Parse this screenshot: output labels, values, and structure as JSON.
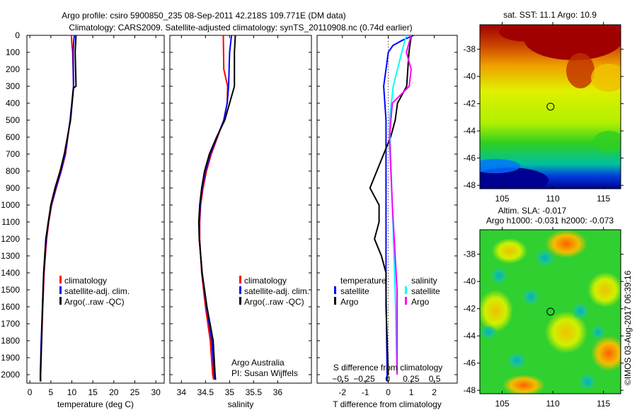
{
  "title_line1": "Argo profile: csiro 5900850_235 08-Sep-2011 42.218S 109.771E (DM data)",
  "title_line2": "Climatology: CARS2009. Satellite-adjusted climatology: synTS_20110908.nc (0.74d earlier)",
  "footer": "©IMOS 03-Aug-2017 06:39:16",
  "colors": {
    "climatology": "#ff0000",
    "satellite": "#0000ff",
    "argo": "#000000",
    "s_satellite": "#00ffff",
    "s_argo": "#ff00ff"
  },
  "chart_data": [
    {
      "type": "line",
      "id": "temperature",
      "xlabel": "temperature (deg C)",
      "ylabel": "",
      "xlim": [
        -0.7,
        32
      ],
      "ylim": [
        2050,
        0
      ],
      "xticks": [
        0,
        5,
        10,
        15,
        20,
        25,
        30
      ],
      "yticks": [
        0,
        100,
        200,
        300,
        400,
        500,
        600,
        700,
        800,
        900,
        1000,
        1100,
        1200,
        1300,
        1400,
        1500,
        1600,
        1700,
        1800,
        1900,
        2000
      ],
      "legend": [
        "climatology",
        "satellite-adj. clim.",
        "Argo(..raw -QC)"
      ],
      "series": [
        {
          "name": "climatology",
          "color": "#ff0000",
          "depth": [
            0,
            50,
            100,
            300,
            500,
            700,
            800,
            900,
            1000,
            1100,
            1200,
            1300,
            1400,
            1600,
            1800,
            2000,
            2040
          ],
          "values": [
            9.9,
            10,
            10.2,
            10.4,
            9.6,
            8.5,
            7.5,
            6.3,
            5.2,
            4.5,
            4,
            3.7,
            3.4,
            3.1,
            2.8,
            2.6,
            2.6
          ]
        },
        {
          "name": "satellite-adj. clim.",
          "color": "#0000ff",
          "depth": [
            0,
            50,
            100,
            300,
            500,
            700,
            800,
            900,
            1000,
            1100,
            1200,
            1300,
            1400,
            1600,
            1800,
            2000,
            2040
          ],
          "values": [
            10.6,
            10.4,
            10.3,
            10.4,
            9.6,
            8.4,
            7.4,
            6.2,
            5.1,
            4.4,
            3.9,
            3.6,
            3.3,
            3,
            2.7,
            2.5,
            2.5
          ]
        },
        {
          "name": "Argo(..raw -QC)",
          "color": "#000000",
          "depth": [
            0,
            100,
            300,
            310,
            500,
            700,
            800,
            900,
            1000,
            1200,
            1400,
            1600,
            1800,
            2000,
            2040
          ],
          "values": [
            11,
            10.8,
            11,
            10.4,
            9.7,
            8.2,
            7.2,
            6,
            5,
            3.8,
            3.3,
            3,
            2.8,
            2.5,
            2.5
          ]
        }
      ]
    },
    {
      "type": "line",
      "id": "salinity",
      "xlabel": "salinity",
      "xlim": [
        33.76,
        36.7
      ],
      "ylim": [
        2050,
        0
      ],
      "xticks": [
        34,
        34.5,
        35,
        35.5,
        36
      ],
      "legend": [
        "climatology",
        "satellite-adj. clim.",
        "Argo(..raw -QC)"
      ],
      "annotation": [
        "Argo Australia",
        "PI: Susan Wijffels"
      ],
      "series": [
        {
          "name": "climatology",
          "color": "#ff0000",
          "depth": [
            0,
            200,
            300,
            400,
            500,
            600,
            700,
            800,
            900,
            1000,
            1100,
            1200,
            1400,
            1600,
            1800,
            2000,
            2030
          ],
          "values": [
            34.87,
            34.88,
            34.96,
            34.95,
            34.88,
            34.75,
            34.62,
            34.52,
            34.45,
            34.4,
            34.38,
            34.38,
            34.42,
            34.5,
            34.6,
            34.65,
            34.67
          ]
        },
        {
          "name": "satellite-adj. clim.",
          "color": "#0000ff",
          "depth": [
            0,
            100,
            300,
            400,
            500,
            600,
            700,
            800,
            900,
            1000,
            1100,
            1200,
            1400,
            1600,
            1800,
            2000,
            2030
          ],
          "values": [
            35.04,
            35.0,
            34.98,
            34.95,
            34.88,
            34.74,
            34.6,
            34.5,
            34.43,
            34.39,
            34.37,
            34.37,
            34.43,
            34.52,
            34.63,
            34.68,
            34.7
          ]
        },
        {
          "name": "Argo(..raw -QC)",
          "color": "#000000",
          "depth": [
            0,
            100,
            300,
            400,
            500,
            600,
            700,
            800,
            900,
            1000,
            1100,
            1200,
            1400,
            1600,
            1800,
            2000,
            2030
          ],
          "values": [
            35.12,
            35.1,
            35.1,
            35.0,
            34.9,
            34.73,
            34.58,
            34.48,
            34.42,
            34.38,
            34.36,
            34.37,
            34.43,
            34.53,
            34.66,
            34.7,
            34.71
          ]
        }
      ]
    },
    {
      "type": "line",
      "id": "difference",
      "xlabel": "T difference from climatology",
      "x2label": "S difference from climatology",
      "xlim": [
        -3.1,
        3.0
      ],
      "x2lim": [
        -0.75,
        0.74
      ],
      "ylim": [
        2050,
        0
      ],
      "xticks": [
        -2,
        -1,
        0,
        1,
        2
      ],
      "x2ticks": [
        "-0.5",
        "-0.25",
        "0",
        "0.25",
        "0.5"
      ],
      "legend": {
        "temperature": "temperature",
        "salinity": "salinity",
        "items": [
          "satellite",
          "Argo"
        ]
      },
      "series": [
        {
          "name": "T satellite",
          "color": "#0000ff",
          "axis": "T",
          "depth": [
            0,
            30,
            60,
            100,
            200,
            300,
            500,
            700,
            1000,
            1500,
            2000,
            2040
          ],
          "values": [
            1.1,
            0.6,
            0.2,
            0,
            -0.1,
            -0.2,
            -0.1,
            -0.1,
            -0.1,
            -0.1,
            -0.05,
            -0.05
          ]
        },
        {
          "name": "T Argo",
          "color": "#000000",
          "axis": "T",
          "depth": [
            0,
            100,
            300,
            400,
            500,
            600,
            700,
            800,
            900,
            1000,
            1100,
            1200,
            1300,
            1400,
            1600,
            1800,
            2000
          ],
          "values": [
            1.0,
            0.9,
            0.8,
            0.4,
            0.3,
            0.1,
            -0.2,
            -0.5,
            -0.8,
            -0.4,
            -0.4,
            -0.6,
            -0.3,
            -0.1,
            -0.1,
            -0.05,
            0
          ]
        },
        {
          "name": "S satellite",
          "color": "#00ffff",
          "axis": "S",
          "depth": [
            0,
            100,
            300,
            500,
            1000,
            1500,
            2000
          ],
          "values": [
            0.2,
            0.15,
            0.06,
            0.02,
            0.05,
            0.08,
            0.1
          ]
        },
        {
          "name": "S Argo",
          "color": "#ff00ff",
          "axis": "S",
          "depth": [
            0,
            100,
            200,
            300,
            400,
            600,
            1000,
            1500,
            2000
          ],
          "values": [
            0.25,
            0.2,
            0.25,
            0.23,
            0.05,
            0.02,
            0.05,
            0.1,
            0.1
          ]
        }
      ]
    },
    {
      "type": "heatmap",
      "id": "sst-map",
      "title": "sat. SST: 11.1  Argo: 10.9",
      "xlim": [
        102.8,
        116.7
      ],
      "ylim": [
        -48.25,
        -36.2
      ],
      "xticks": [
        105,
        110,
        115
      ],
      "yticks": [
        -38,
        -40,
        -42,
        -44,
        -46,
        -48
      ],
      "marker": {
        "lon": 109.771,
        "lat": -42.218
      }
    },
    {
      "type": "heatmap",
      "id": "sla-map",
      "title": "Altim. SLA: -0.017",
      "subtitle": "Argo h1000: -0.031 h2000: -0.073",
      "xlim": [
        102.8,
        116.7
      ],
      "ylim": [
        -48.25,
        -36.2
      ],
      "xticks": [
        105,
        110,
        115
      ],
      "yticks": [
        -38,
        -40,
        -42,
        -44,
        -46,
        -48
      ],
      "marker": {
        "lon": 109.771,
        "lat": -42.218
      }
    }
  ]
}
